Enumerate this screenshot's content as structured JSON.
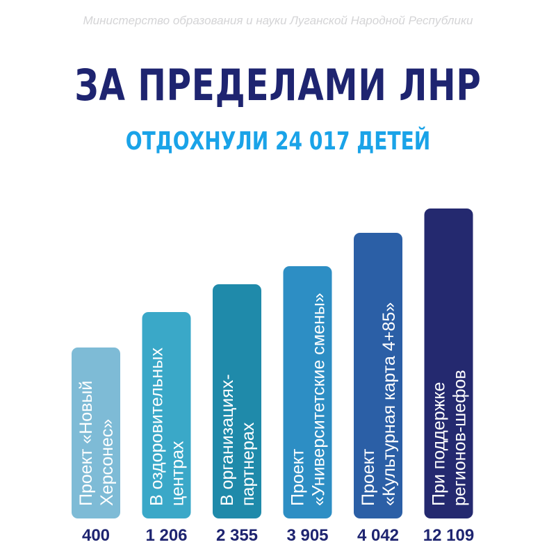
{
  "header": {
    "ministry": "Министерство образования и науки Луганской Народной Республики",
    "title": "ЗА ПРЕДЕЛАМИ ЛНР",
    "subtitle": "ОТДОХНУЛИ 24 017 ДЕТЕЙ"
  },
  "chart_data": {
    "type": "bar",
    "title": "ЗА ПРЕДЕЛАМИ ЛНР",
    "subtitle": "ОТДОХНУЛИ 24 017 ДЕТЕЙ",
    "categories": [
      [
        "Проект «Новый",
        "Херсонес»"
      ],
      [
        "В оздоровительных",
        "центрах"
      ],
      [
        "В организациях-",
        "партнерах"
      ],
      [
        "Проект",
        "«Университетские смены»"
      ],
      [
        "Проект",
        "«Культурная карта 4+85»"
      ],
      [
        "При поддержке",
        "регионов-шефов"
      ]
    ],
    "values": [
      400,
      1206,
      2355,
      3905,
      4042,
      12109
    ],
    "value_labels": [
      "400",
      "1 206",
      "2 355",
      "3 905",
      "4 042",
      "12 109"
    ],
    "colors": [
      "#7ebbd6",
      "#3aa8c8",
      "#1f8aaa",
      "#2d8ec4",
      "#2b5fa6",
      "#24296f"
    ],
    "xlabel": "",
    "ylabel": ""
  }
}
